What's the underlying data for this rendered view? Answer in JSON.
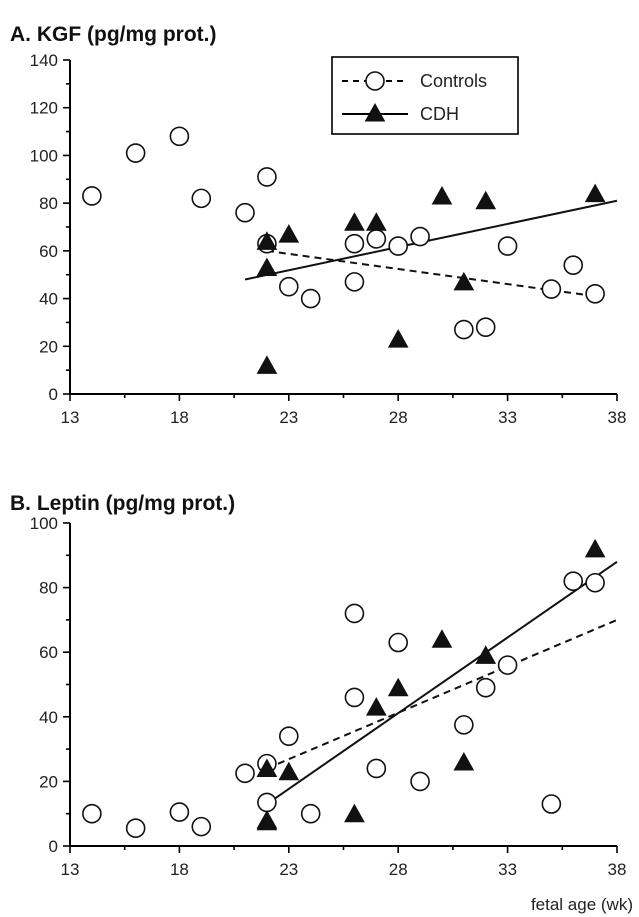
{
  "chart_data": [
    {
      "type": "scatter",
      "title": "A. KGF (pg/mg prot.)",
      "xlabel": "",
      "ylabel": "",
      "xlim": [
        13,
        38
      ],
      "ylim": [
        0,
        140
      ],
      "x_ticks": [
        13,
        18,
        23,
        28,
        33,
        38
      ],
      "y_ticks": [
        0,
        20,
        40,
        60,
        80,
        100,
        120,
        140
      ],
      "legend": {
        "placement": "top-right",
        "entries": [
          "Controls",
          "CDH"
        ]
      },
      "series": [
        {
          "name": "Controls",
          "marker": "open-circle",
          "line_style": "dashed",
          "points": [
            [
              14,
              83
            ],
            [
              16,
              101
            ],
            [
              18,
              108
            ],
            [
              19,
              82
            ],
            [
              21,
              76
            ],
            [
              22,
              91
            ],
            [
              22,
              63
            ],
            [
              23,
              45
            ],
            [
              24,
              40
            ],
            [
              26,
              63
            ],
            [
              26,
              47
            ],
            [
              27,
              65
            ],
            [
              28,
              62
            ],
            [
              29,
              66
            ],
            [
              31,
              27
            ],
            [
              32,
              28
            ],
            [
              33,
              62
            ],
            [
              35,
              44
            ],
            [
              36,
              54
            ],
            [
              37,
              42
            ]
          ],
          "trend": [
            [
              22,
              60
            ],
            [
              37,
              41
            ]
          ]
        },
        {
          "name": "CDH",
          "marker": "filled-triangle",
          "line_style": "solid",
          "points": [
            [
              22,
              64
            ],
            [
              22,
              53
            ],
            [
              22,
              12
            ],
            [
              23,
              67
            ],
            [
              26,
              72
            ],
            [
              27,
              72
            ],
            [
              28,
              23
            ],
            [
              30,
              83
            ],
            [
              31,
              47
            ],
            [
              32,
              81
            ],
            [
              37,
              84
            ]
          ],
          "trend": [
            [
              21,
              48
            ],
            [
              38,
              81
            ]
          ]
        }
      ]
    },
    {
      "type": "scatter",
      "title": "B. Leptin (pg/mg prot.)",
      "xlabel": "fetal age (wk)",
      "ylabel": "",
      "xlim": [
        13,
        38
      ],
      "ylim": [
        0,
        100
      ],
      "x_ticks": [
        13,
        18,
        23,
        28,
        33,
        38
      ],
      "y_ticks": [
        0,
        20,
        40,
        60,
        80,
        100
      ],
      "series": [
        {
          "name": "Controls",
          "marker": "open-circle",
          "line_style": "dashed",
          "points": [
            [
              14,
              10
            ],
            [
              16,
              5.5
            ],
            [
              18,
              10.5
            ],
            [
              19,
              6
            ],
            [
              21,
              22.5
            ],
            [
              22,
              25.5
            ],
            [
              22,
              13.5
            ],
            [
              23,
              34
            ],
            [
              24,
              10
            ],
            [
              26,
              72
            ],
            [
              26,
              46
            ],
            [
              27,
              24
            ],
            [
              28,
              63
            ],
            [
              29,
              20
            ],
            [
              31,
              37.5
            ],
            [
              32,
              49
            ],
            [
              33,
              56
            ],
            [
              35,
              13
            ],
            [
              36,
              82
            ],
            [
              37,
              81.5
            ]
          ],
          "trend": [
            [
              22,
              24
            ],
            [
              38,
              70
            ]
          ]
        },
        {
          "name": "CDH",
          "marker": "filled-triangle",
          "line_style": "solid",
          "points": [
            [
              22,
              24
            ],
            [
              22,
              8
            ],
            [
              22,
              7.5
            ],
            [
              23,
              23
            ],
            [
              26,
              10
            ],
            [
              27,
              43
            ],
            [
              28,
              49
            ],
            [
              30,
              64
            ],
            [
              31,
              26
            ],
            [
              32,
              59
            ],
            [
              37,
              92
            ]
          ],
          "trend": [
            [
              22,
              13
            ],
            [
              38,
              88
            ]
          ]
        }
      ]
    }
  ]
}
